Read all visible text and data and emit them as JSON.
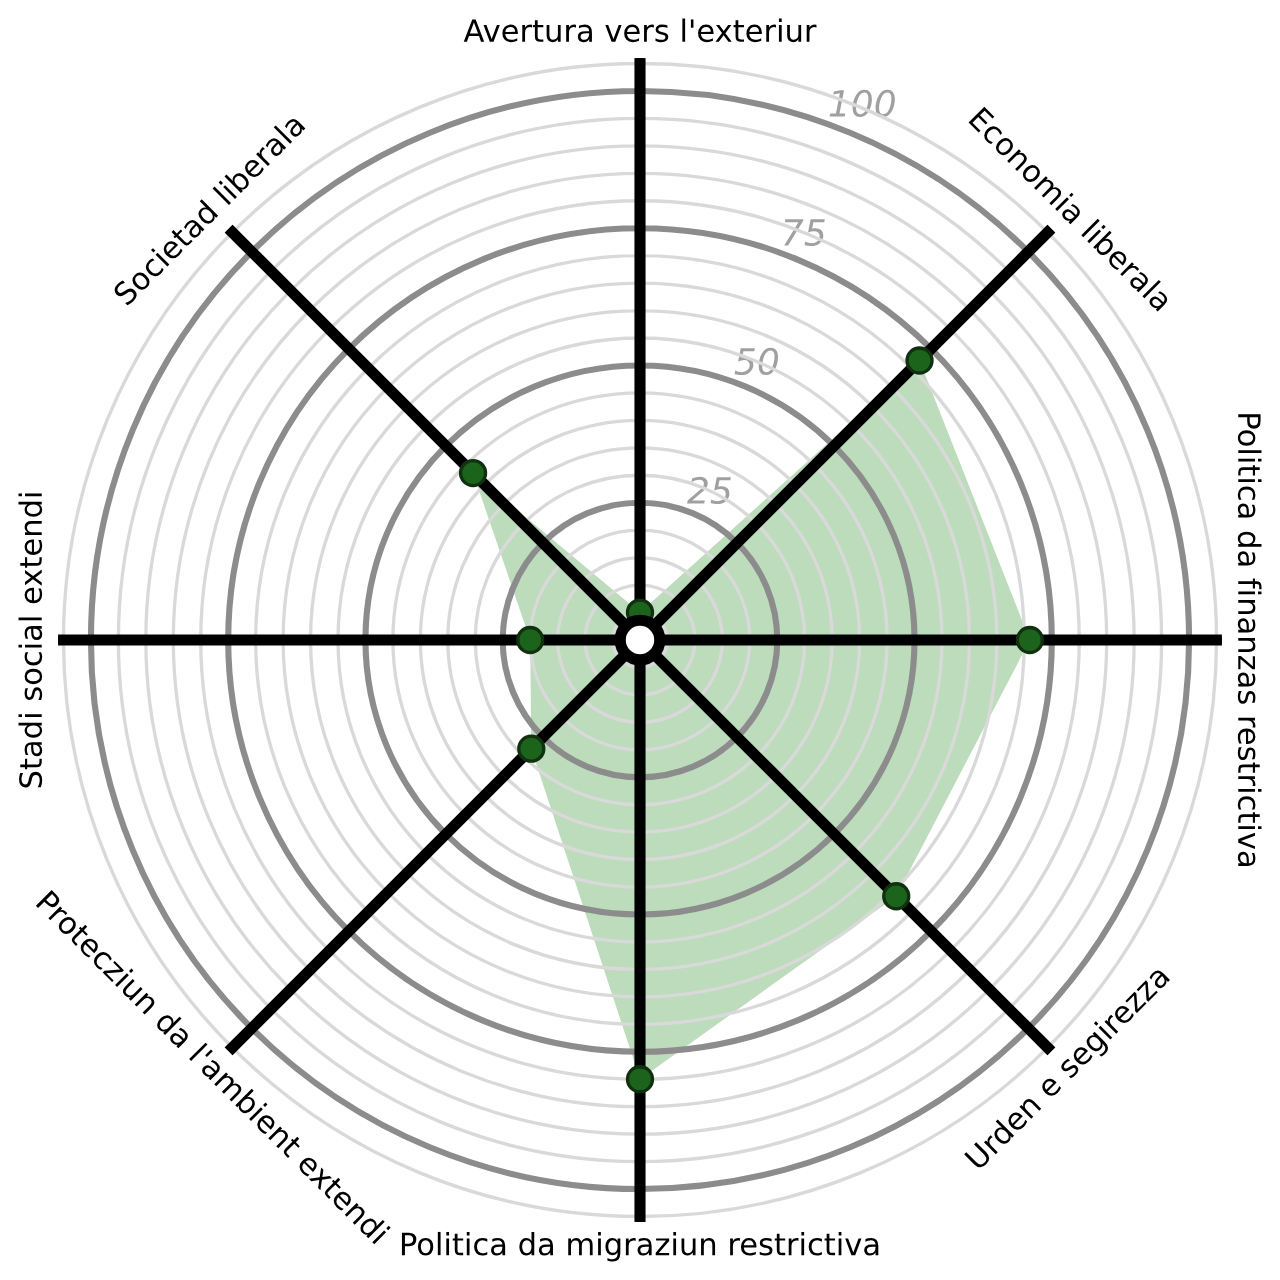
{
  "chart_data": {
    "type": "radar",
    "categories": [
      "Avertura vers l'exteriur",
      "Economia liberala",
      "Politica da finanzas restrictiva",
      "Urden e segirezza",
      "Politica da migraziun restrictiva",
      "Protecziun da l'ambient extendi",
      "Stadi social extendi",
      "Societad liberala"
    ],
    "series": [
      {
        "color": "#bcdcbc",
        "values": [
          5,
          72,
          71,
          66,
          80,
          28,
          20,
          43
        ]
      }
    ],
    "ylim": [
      0,
      106
    ],
    "yticks": [
      25,
      50,
      75,
      100
    ],
    "grid": true,
    "marker": "circle"
  }
}
